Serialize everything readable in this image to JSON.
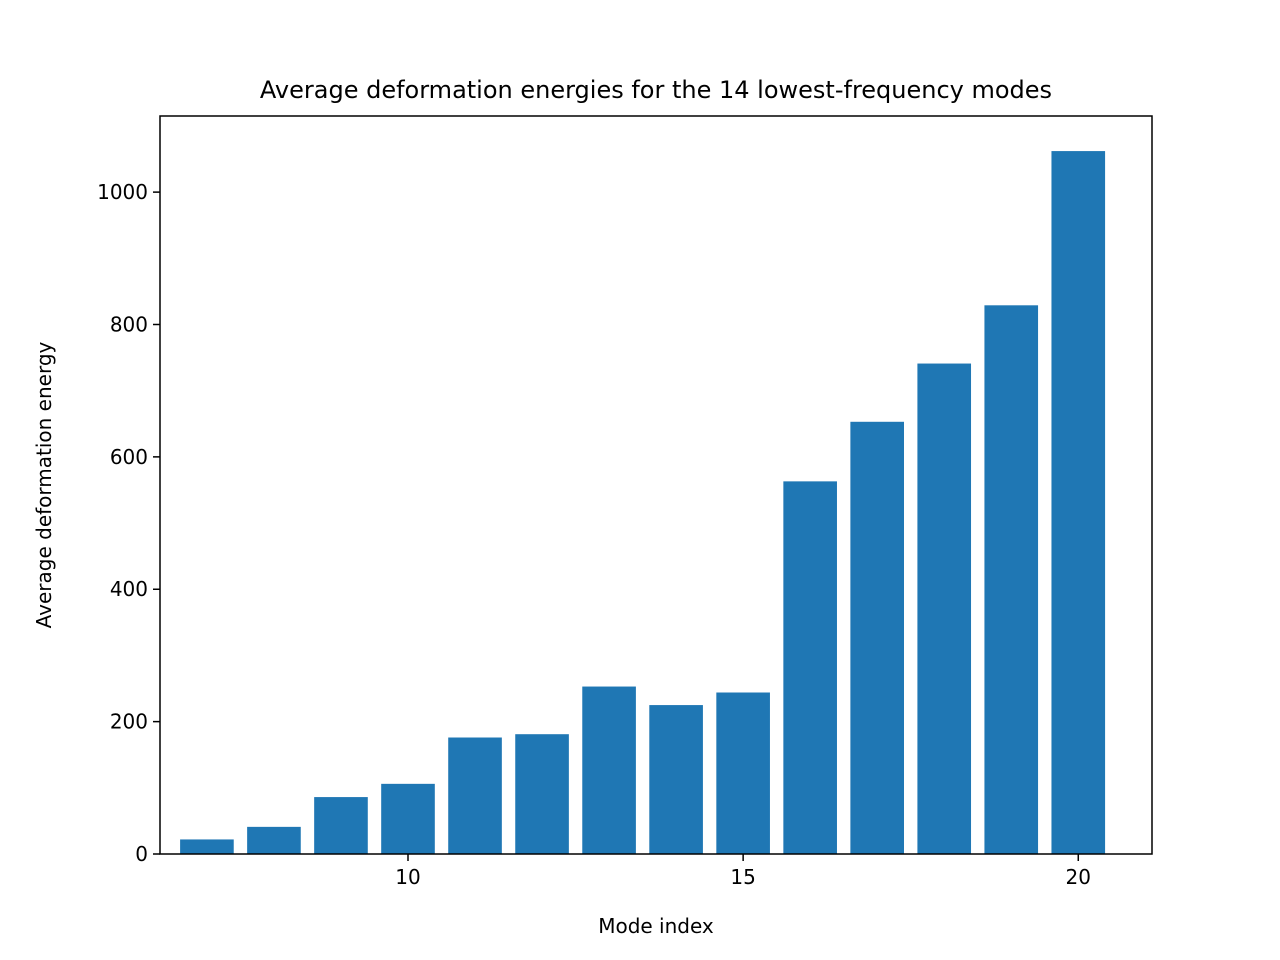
{
  "chart_data": {
    "type": "bar",
    "title": "Average deformation energies for the 14 lowest-frequency modes",
    "xlabel": "Mode index",
    "ylabel": "Average deformation energy",
    "x": [
      7,
      8,
      9,
      10,
      11,
      12,
      13,
      14,
      15,
      16,
      17,
      18,
      19,
      20
    ],
    "values": [
      22,
      41,
      86,
      106,
      176,
      181,
      253,
      225,
      244,
      563,
      653,
      741,
      829,
      1062
    ],
    "xlim": [
      6.3,
      21.1
    ],
    "ylim": [
      0,
      1115
    ],
    "xticks": [
      10,
      15,
      20
    ],
    "yticks": [
      0,
      200,
      400,
      600,
      800,
      1000
    ],
    "bar_width": 0.8,
    "bar_color": "#1f77b4",
    "grid": false,
    "legend": "none"
  }
}
